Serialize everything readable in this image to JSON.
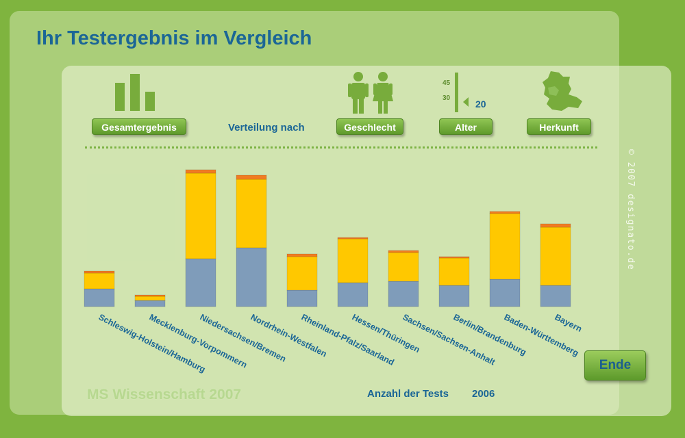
{
  "title": "Ihr Testergebnis im Vergleich",
  "nav": {
    "gesamt_label": "Gesamtergebnis",
    "verteilung_label": "Verteilung nach",
    "geschlecht_label": "Geschlecht",
    "alter_label": "Alter",
    "herkunft_label": "Herkunft"
  },
  "age_icon": {
    "tick_high": "45",
    "tick_low": "30",
    "value": "20"
  },
  "copyright": "© 2007 designato.de",
  "chart_data": {
    "type": "bar",
    "stacked": true,
    "categories": [
      "Schleswig-Holstein/Hamburg",
      "Mecklenburg-Vorpommern",
      "Niedersachsen/Bremen",
      "Nordrhein-Westfalen",
      "Rheinland-Pfalz/Saarland",
      "Hessen/Thüringen",
      "Sachsen/Sachsen-Anhalt",
      "Berlin/Brandenburg",
      "Baden-Württemberg",
      "Bayern"
    ],
    "series": [
      {
        "color": "#7f9cba",
        "values": [
          26,
          9,
          70,
          86,
          24,
          35,
          37,
          31,
          40,
          31
        ]
      },
      {
        "color": "#ffc800",
        "values": [
          23,
          6,
          125,
          100,
          49,
          64,
          42,
          40,
          96,
          85
        ]
      },
      {
        "color": "#f07c22",
        "values": [
          3,
          2,
          5,
          6,
          4,
          2,
          3,
          2,
          3,
          5
        ]
      }
    ],
    "grid": false,
    "legend": "none"
  },
  "ende_label": "Ende",
  "footer": {
    "brand": "MS Wissenschaft 2007",
    "count_label": "Anzahl der Tests",
    "count_value": "2006"
  },
  "colors": {
    "background": "#7fb43f",
    "accent_blue": "#1b6696",
    "button_green": "#6aa832"
  },
  "icons": [
    "bar-chart-icon",
    "man-woman-icon",
    "age-slider-icon",
    "germany-map-icon"
  ]
}
